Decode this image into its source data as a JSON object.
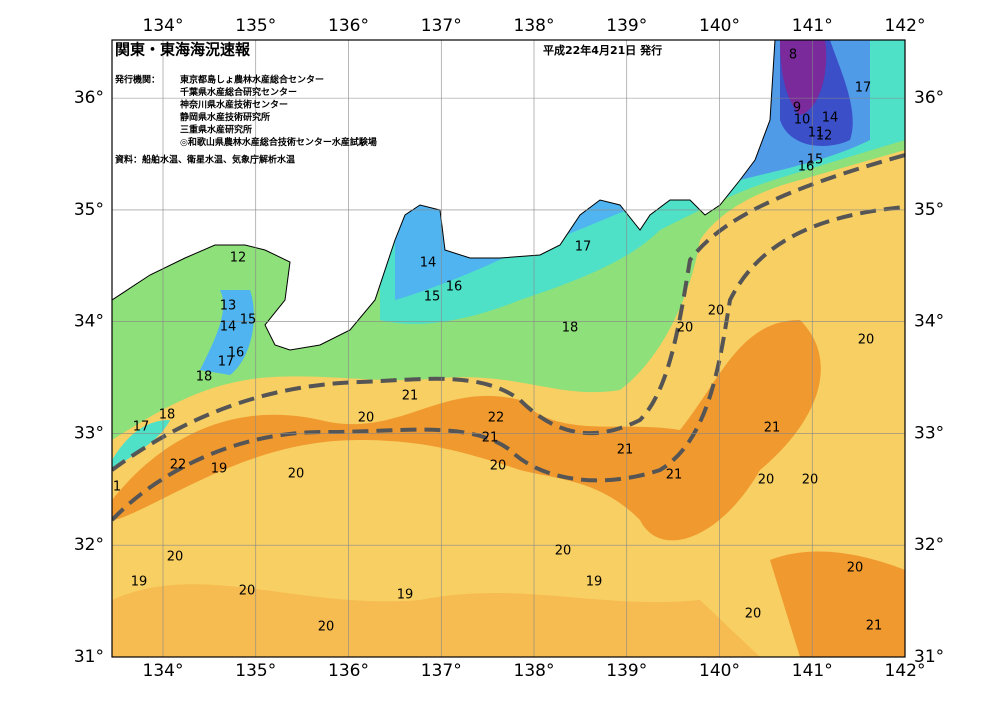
{
  "header": {
    "title": "関東・東海海況速報",
    "date": "平成22年4月21日 発行"
  },
  "issuers": {
    "label": "発行機関：",
    "names": [
      "東京都島しょ農林水産総合センター",
      "千葉県水産総合研究センター",
      "神奈川県水産技術センター",
      "静岡県水産技術研究所",
      "三重県水産研究所",
      "◎和歌山県農林水産総合技術センター水産試験場"
    ]
  },
  "source": "資料：船舶水温、衛星水温、気象庁解析水温",
  "map": {
    "xlim": [
      133.45,
      142
    ],
    "ylim": [
      31,
      36.52
    ],
    "xticks": [
      {
        "value": 134,
        "label": "134°"
      },
      {
        "value": 135,
        "label": "135°"
      },
      {
        "value": 136,
        "label": "136°"
      },
      {
        "value": 137,
        "label": "137°"
      },
      {
        "value": 138,
        "label": "138°"
      },
      {
        "value": 139,
        "label": "139°"
      },
      {
        "value": 140,
        "label": "140°"
      },
      {
        "value": 141,
        "label": "141°"
      },
      {
        "value": 142,
        "label": "142°"
      }
    ],
    "yticks": [
      {
        "value": 31,
        "label": "31°"
      },
      {
        "value": 32,
        "label": "32°"
      },
      {
        "value": 33,
        "label": "33°"
      },
      {
        "value": 34,
        "label": "34°"
      },
      {
        "value": 35,
        "label": "35°"
      },
      {
        "value": 36,
        "label": "36°"
      }
    ],
    "contour_labels": [
      "8",
      "17",
      "9",
      "10",
      "14",
      "11",
      "12",
      "15",
      "16",
      "12",
      "13",
      "15",
      "14",
      "16",
      "17",
      "18",
      "14",
      "15",
      "16",
      "17",
      "18",
      "20",
      "20",
      "20",
      "21",
      "20",
      "22",
      "21",
      "20",
      "21",
      "21",
      "21",
      "20",
      "20",
      "18",
      "17",
      "22",
      "19",
      "20",
      "1",
      "20",
      "19",
      "20",
      "19",
      "20",
      "20",
      "19",
      "20",
      "21",
      "20"
    ]
  }
}
